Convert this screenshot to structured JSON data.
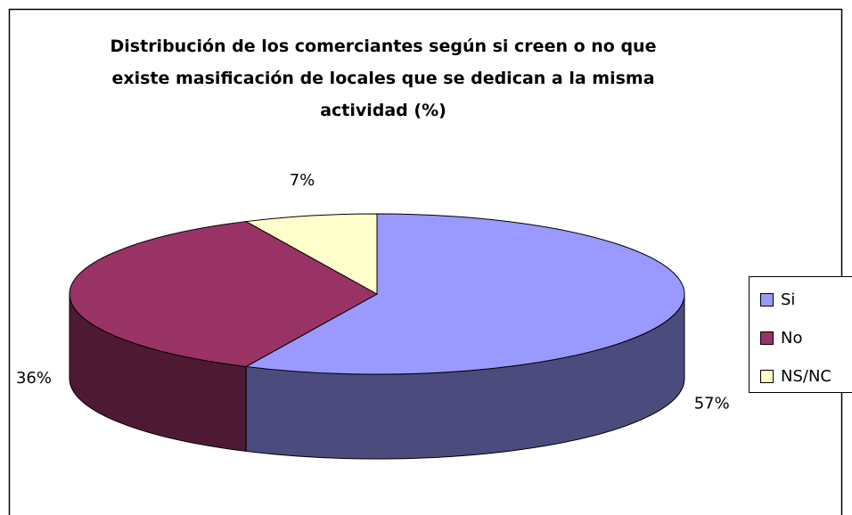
{
  "chart_data": {
    "type": "pie",
    "title": "Distribución de los comerciantes según si creen o no que existe masificación de locales que se dedican a la misma actividad (%)",
    "categories": [
      "Si",
      "No",
      "NS/NC"
    ],
    "values": [
      57,
      36,
      7
    ],
    "value_labels": [
      "57%",
      "36%",
      "7%"
    ],
    "colors": [
      "#9999ff",
      "#993366",
      "#ffffcc"
    ],
    "side_colors": [
      "#4b4b7e",
      "#4e1a33",
      "#bdbd96"
    ],
    "legend": "right",
    "three_d": true
  }
}
